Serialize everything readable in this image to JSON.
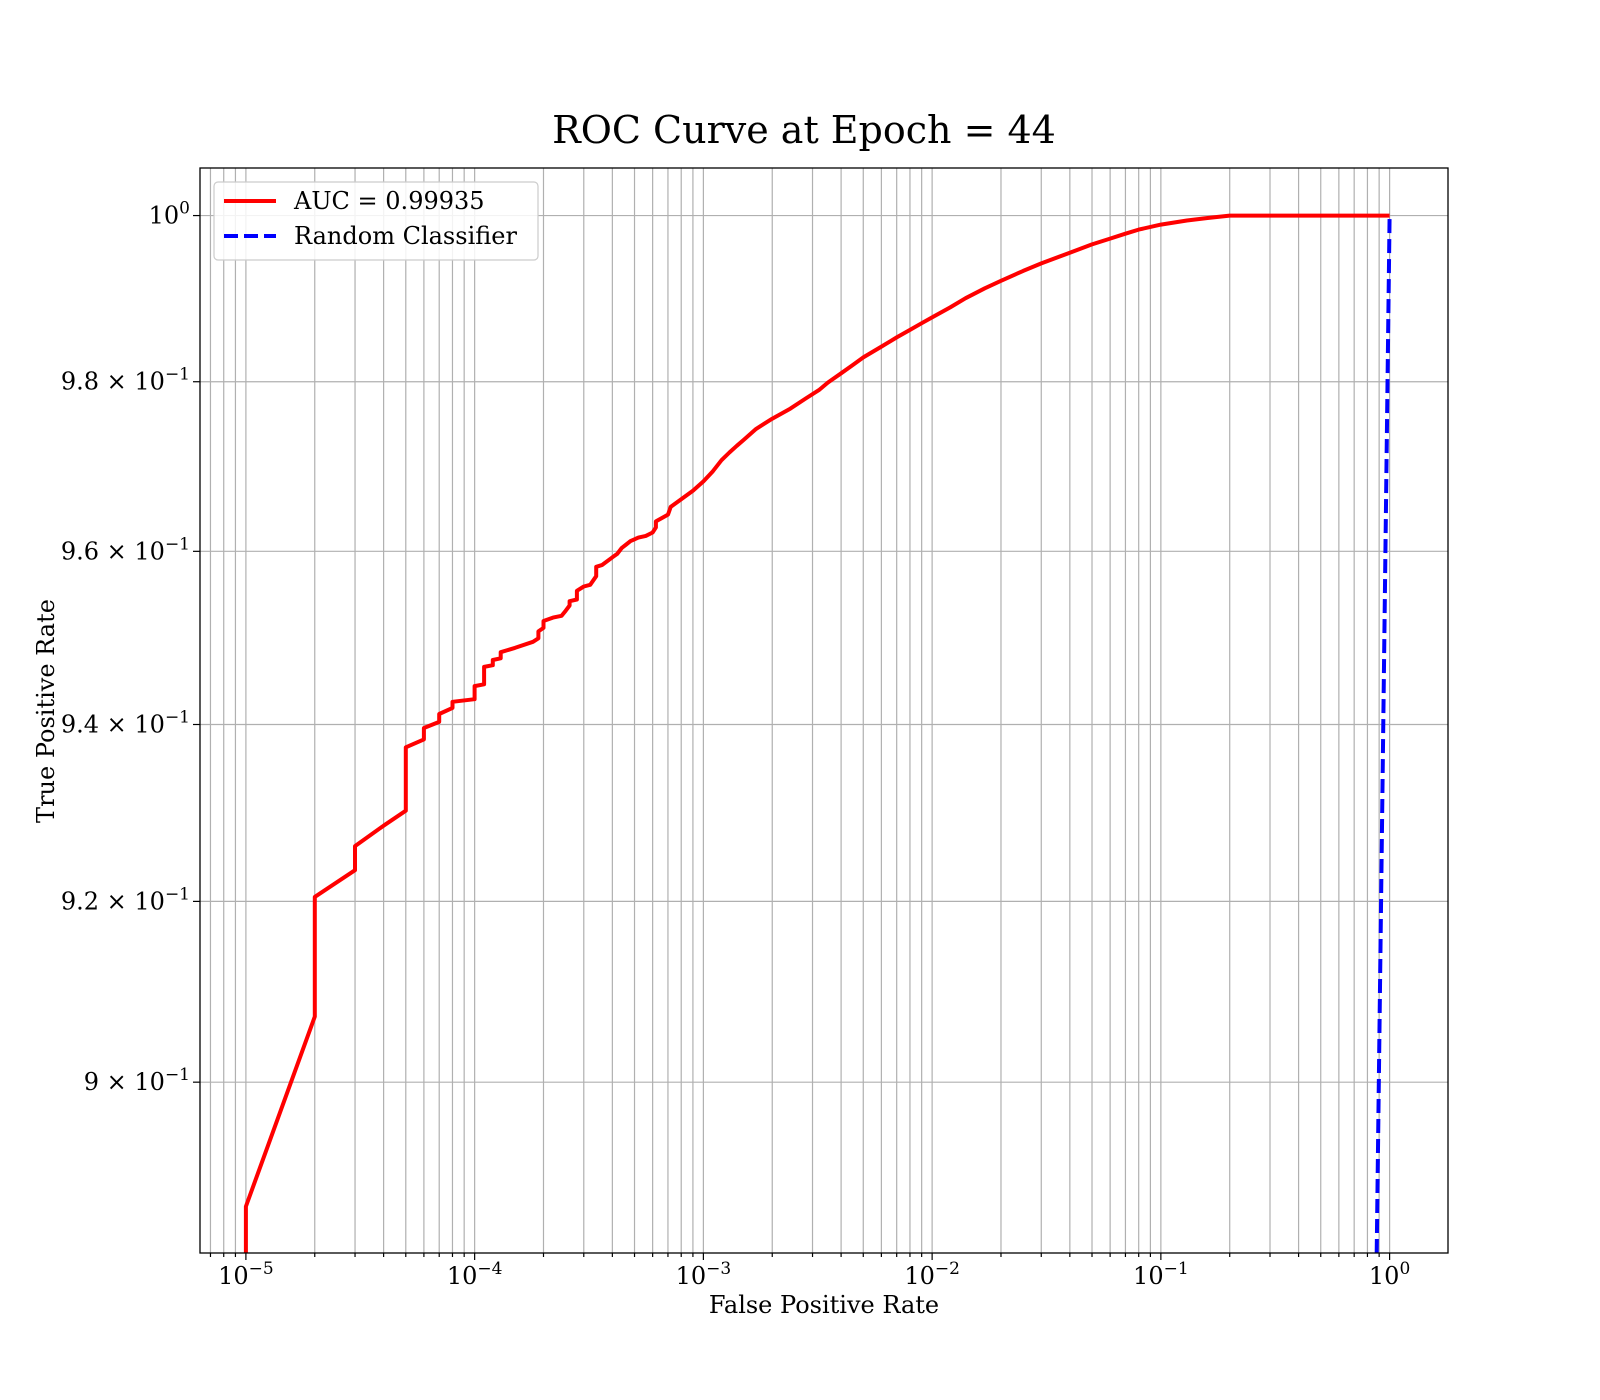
{
  "chart_data": {
    "type": "line",
    "title": "ROC Curve at Epoch = 44",
    "xlabel": "False Positive Rate",
    "ylabel": "True Positive Rate",
    "xscale": "log",
    "yscale": "log",
    "xlim": [
      6.3e-06,
      1.8
    ],
    "ylim": [
      0.8815,
      1.0058
    ],
    "grid": true,
    "grid_minor": true,
    "legend_position": "top-left",
    "x_ticks": [
      {
        "value": 1e-05,
        "base": "10",
        "exp": "−5"
      },
      {
        "value": 0.0001,
        "base": "10",
        "exp": "−4"
      },
      {
        "value": 0.001,
        "base": "10",
        "exp": "−3"
      },
      {
        "value": 0.01,
        "base": "10",
        "exp": "−2"
      },
      {
        "value": 0.1,
        "base": "10",
        "exp": "−1"
      },
      {
        "value": 1,
        "base": "10",
        "exp": "0"
      }
    ],
    "y_ticks": [
      {
        "value": 0.9,
        "mant": "9 × 10",
        "exp": "−1"
      },
      {
        "value": 0.92,
        "mant": "9.2 × 10",
        "exp": "−1"
      },
      {
        "value": 0.94,
        "mant": "9.4 × 10",
        "exp": "−1"
      },
      {
        "value": 0.96,
        "mant": "9.6 × 10",
        "exp": "−1"
      },
      {
        "value": 0.98,
        "mant": "9.8 × 10",
        "exp": "−1"
      },
      {
        "value": 1,
        "mant": "10",
        "exp": "0"
      }
    ],
    "series": [
      {
        "name": "AUC = 0.99935",
        "color": "#ff0000",
        "style": "solid",
        "x": [
          1e-05,
          1e-05,
          2e-05,
          2e-05,
          3e-05,
          3e-05,
          4e-05,
          5e-05,
          5e-05,
          6e-05,
          6e-05,
          7e-05,
          7e-05,
          8e-05,
          8e-05,
          0.0001,
          0.0001,
          0.00011,
          0.00011,
          0.00012,
          0.00012,
          0.00013,
          0.00013,
          0.00015,
          0.00018,
          0.00019,
          0.00019,
          0.0002,
          0.0002,
          0.00022,
          0.00024,
          0.00025,
          0.00026,
          0.00026,
          0.00028,
          0.00028,
          0.0003,
          0.00032,
          0.00034,
          0.00034,
          0.00036,
          0.0004,
          0.00042,
          0.00044,
          0.00046,
          0.00048,
          0.00052,
          0.00056,
          0.0006,
          0.00062,
          0.00062,
          0.0007,
          0.00072,
          0.0008,
          0.0009,
          0.001,
          0.0011,
          0.0012,
          0.0013,
          0.0014,
          0.0015,
          0.0017,
          0.002,
          0.0024,
          0.0028,
          0.0032,
          0.0035,
          0.004,
          0.0045,
          0.005,
          0.006,
          0.007,
          0.008,
          0.009,
          0.01,
          0.012,
          0.014,
          0.017,
          0.02,
          0.025,
          0.03,
          0.04,
          0.05,
          0.06,
          0.07,
          0.08,
          0.1,
          0.13,
          0.16,
          0.2,
          0.3,
          0.5,
          0.7,
          1
        ],
        "y": [
          0.8815,
          0.8865,
          0.9072,
          0.9205,
          0.9235,
          0.9262,
          0.9285,
          0.9302,
          0.9374,
          0.9383,
          0.9396,
          0.9403,
          0.9412,
          0.9419,
          0.9426,
          0.9429,
          0.9444,
          0.9446,
          0.9466,
          0.9468,
          0.9474,
          0.9476,
          0.9483,
          0.9488,
          0.9495,
          0.9499,
          0.9507,
          0.9511,
          0.9519,
          0.9523,
          0.9525,
          0.9531,
          0.9537,
          0.9542,
          0.9544,
          0.9554,
          0.9559,
          0.9561,
          0.9571,
          0.9582,
          0.9584,
          0.9593,
          0.9597,
          0.9604,
          0.9608,
          0.9612,
          0.9616,
          0.9618,
          0.9622,
          0.9628,
          0.9635,
          0.9643,
          0.9652,
          0.9661,
          0.9671,
          0.9682,
          0.9694,
          0.9707,
          0.9716,
          0.9724,
          0.9731,
          0.9744,
          0.9756,
          0.9768,
          0.978,
          0.979,
          0.9799,
          0.981,
          0.982,
          0.9829,
          0.9842,
          0.9853,
          0.9862,
          0.987,
          0.9877,
          0.9889,
          0.99,
          0.9912,
          0.9921,
          0.9933,
          0.9942,
          0.9955,
          0.9965,
          0.9972,
          0.9978,
          0.9983,
          0.9989,
          0.9994,
          0.9997,
          1,
          1,
          1,
          1,
          1
        ]
      },
      {
        "name": "Random Classifier",
        "color": "#0000ff",
        "style": "dashed",
        "x": [
          0.878,
          1
        ],
        "y": [
          0.8815,
          1
        ]
      }
    ]
  }
}
